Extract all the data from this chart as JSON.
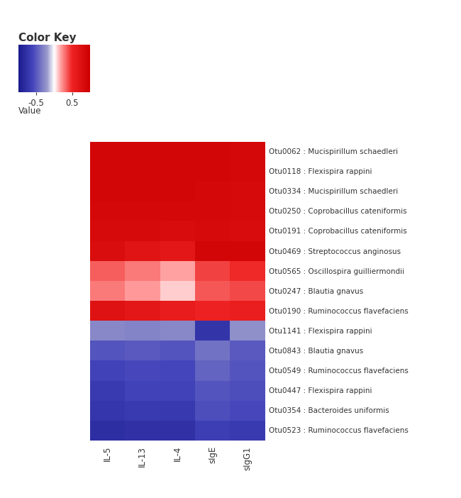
{
  "rows": [
    "Otu0062 : Mucispirillum schaedleri",
    "Otu0118 : Flexispira rappini",
    "Otu0334 : Mucispirillum schaedleri",
    "Otu0250 : Coprobacillus cateniformis",
    "Otu0191 : Coprobacillus cateniformis",
    "Otu0469 : Streptococcus anginosus",
    "Otu0565 : Oscillospira guilliermondii",
    "Otu0247 : Blautia gnavus",
    "Otu0190 : Ruminococcus flavefaciens",
    "Otu1141 : Flexispira rappini",
    "Otu0843 : Blautia gnavus",
    "Otu0549 : Ruminococcus flavefaciens",
    "Otu0447 : Flexispira rappini",
    "Otu0354 : Bacteroides uniformis",
    "Otu0523 : Ruminococcus flavefaciens"
  ],
  "cols": [
    "IL-5",
    "IL-13",
    "IL-4",
    "sIgE",
    "sIgG1"
  ],
  "data": [
    [
      0.9,
      0.9,
      0.9,
      0.9,
      0.88
    ],
    [
      0.9,
      0.9,
      0.9,
      0.9,
      0.88
    ],
    [
      0.9,
      0.9,
      0.9,
      0.88,
      0.85
    ],
    [
      0.88,
      0.88,
      0.88,
      0.88,
      0.85
    ],
    [
      0.85,
      0.85,
      0.82,
      0.85,
      0.82
    ],
    [
      0.8,
      0.7,
      0.65,
      0.9,
      0.9
    ],
    [
      0.35,
      0.28,
      0.18,
      0.42,
      0.48
    ],
    [
      0.28,
      0.2,
      0.1,
      0.36,
      0.4
    ],
    [
      0.72,
      0.65,
      0.58,
      0.5,
      0.55
    ],
    [
      -0.28,
      -0.3,
      -0.28,
      -0.75,
      -0.25
    ],
    [
      -0.52,
      -0.5,
      -0.52,
      -0.38,
      -0.5
    ],
    [
      -0.62,
      -0.58,
      -0.6,
      -0.45,
      -0.52
    ],
    [
      -0.68,
      -0.62,
      -0.62,
      -0.52,
      -0.55
    ],
    [
      -0.72,
      -0.68,
      -0.7,
      -0.55,
      -0.58
    ],
    [
      -0.8,
      -0.78,
      -0.78,
      -0.65,
      -0.68
    ]
  ],
  "vmin": -1.0,
  "vmax": 1.0,
  "colorbar_ticks": [
    -0.5,
    0.5
  ],
  "colorbar_ticklabels": [
    "-0.5",
    "0.5"
  ],
  "colorbar_label": "Value",
  "colorbar_title": "Color Key",
  "background_color": "#ffffff",
  "text_color": "#333333",
  "row_label_fontsize": 7.5,
  "col_tick_fontsize": 8.5,
  "cbar_title_fontsize": 11,
  "cbar_tick_fontsize": 8.5
}
